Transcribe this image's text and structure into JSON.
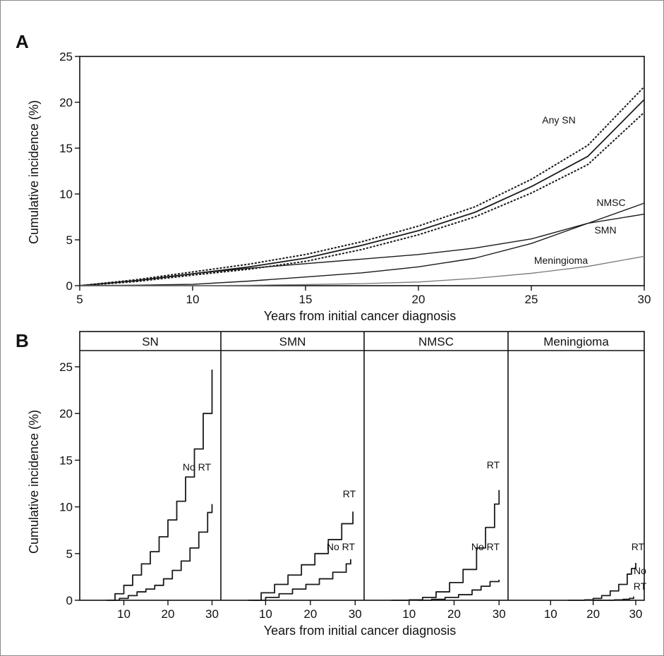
{
  "chart_data": [
    {
      "type": "line",
      "panel_label": "A",
      "xlabel": "Years from initial cancer diagnosis",
      "ylabel": "Cumulative incidence (%)",
      "xlim": [
        5,
        30
      ],
      "ylim": [
        0,
        25
      ],
      "xticks": [
        5,
        10,
        15,
        20,
        25,
        30
      ],
      "yticks": [
        0,
        5,
        10,
        15,
        20,
        25
      ],
      "grid": false,
      "x": [
        5,
        7.5,
        10,
        12.5,
        15,
        17.5,
        20,
        22.5,
        25,
        27.5,
        30
      ],
      "series": [
        {
          "name": "Any SN",
          "values": [
            0,
            0.55,
            1.3,
            2.05,
            3.0,
            4.4,
            6.0,
            8.0,
            10.8,
            14.1,
            20.3
          ]
        },
        {
          "name": "",
          "style": "dashed",
          "values": [
            0,
            0.65,
            1.5,
            2.35,
            3.4,
            4.8,
            6.5,
            8.6,
            11.6,
            15.3,
            21.7
          ]
        },
        {
          "name": "",
          "style": "dashed",
          "values": [
            0,
            0.45,
            1.15,
            1.8,
            2.65,
            3.95,
            5.55,
            7.5,
            10.1,
            13.2,
            18.9
          ]
        },
        {
          "name": "NMSC",
          "values": [
            0,
            0.05,
            0.15,
            0.5,
            0.95,
            1.4,
            2.05,
            3.0,
            4.6,
            6.8,
            9.0
          ]
        },
        {
          "name": "SMN",
          "values": [
            0,
            0.55,
            1.3,
            1.9,
            2.4,
            2.9,
            3.4,
            4.1,
            5.1,
            6.8,
            7.8
          ]
        },
        {
          "name": "Meningioma",
          "values": [
            0,
            0,
            0,
            0.05,
            0.12,
            0.22,
            0.4,
            0.8,
            1.35,
            2.1,
            3.2
          ]
        }
      ],
      "annotations": [
        "Any SN",
        "NMSC",
        "SMN",
        "Meningioma"
      ]
    },
    {
      "type": "line",
      "panel_label": "B",
      "xlabel": "Years from initial cancer diagnosis",
      "ylabel": "Cumulative incidence (%)",
      "ylim": [
        0,
        25
      ],
      "yticks": [
        0,
        5,
        10,
        15,
        20,
        25
      ],
      "xticks": [
        10,
        20,
        30
      ],
      "grid": false,
      "facets": [
        {
          "title": "SN",
          "xlim": [
            0,
            32
          ],
          "series": [
            {
              "name": "",
              "x": [
                6,
                8,
                10,
                12,
                14,
                16,
                18,
                20,
                22,
                24,
                26,
                28,
                30
              ],
              "values": [
                0,
                0.7,
                1.6,
                2.7,
                3.9,
                5.2,
                6.8,
                8.6,
                10.6,
                13.2,
                16.2,
                20.0,
                24.7
              ]
            },
            {
              "name": "No RT",
              "x": [
                7,
                9,
                11,
                13,
                15,
                17,
                19,
                21,
                23,
                25,
                27,
                29,
                30
              ],
              "values": [
                0,
                0.2,
                0.5,
                0.9,
                1.2,
                1.6,
                2.3,
                3.2,
                4.2,
                5.6,
                7.3,
                9.4,
                10.3
              ]
            }
          ],
          "annotations": [
            "No RT"
          ]
        },
        {
          "title": "SMN",
          "xlim": [
            0,
            32
          ],
          "series": [
            {
              "name": "RT",
              "x": [
                6,
                9,
                12,
                15,
                18,
                21,
                24,
                27,
                29.5
              ],
              "values": [
                0,
                0.8,
                1.7,
                2.7,
                3.8,
                5.0,
                6.5,
                8.2,
                9.5
              ]
            },
            {
              "name": "No RT",
              "x": [
                7,
                10,
                13,
                16,
                19,
                22,
                25,
                28,
                29
              ],
              "values": [
                0,
                0.3,
                0.7,
                1.2,
                1.7,
                2.3,
                3.0,
                3.9,
                4.4
              ]
            }
          ],
          "annotations": [
            "RT",
            "No RT"
          ]
        },
        {
          "title": "NMSC",
          "xlim": [
            0,
            32
          ],
          "series": [
            {
              "name": "RT",
              "x": [
                6,
                10,
                13,
                16,
                19,
                22,
                25,
                27,
                29,
                30
              ],
              "values": [
                0,
                0.05,
                0.3,
                0.9,
                1.9,
                3.3,
                5.6,
                7.8,
                10.3,
                11.8
              ]
            },
            {
              "name": "No RT",
              "x": [
                12,
                15,
                18,
                21,
                24,
                26,
                28,
                30
              ],
              "values": [
                0,
                0.1,
                0.3,
                0.6,
                1.1,
                1.5,
                2.0,
                2.2
              ]
            }
          ],
          "annotations": [
            "RT",
            "No RT"
          ]
        },
        {
          "title": "Meningioma",
          "xlim": [
            0,
            32
          ],
          "series": [
            {
              "name": "RT",
              "x": [
                14,
                18,
                20,
                22,
                24,
                26,
                28,
                29,
                30
              ],
              "values": [
                0,
                0.05,
                0.2,
                0.5,
                1.0,
                1.7,
                2.8,
                3.4,
                4.0
              ]
            },
            {
              "name": "No RT",
              "x": [
                20,
                25,
                27,
                28.5,
                29.5
              ],
              "values": [
                0,
                0.05,
                0.1,
                0.2,
                0.4
              ]
            }
          ],
          "annotations": [
            "RT",
            "No",
            "RT"
          ]
        }
      ]
    }
  ]
}
